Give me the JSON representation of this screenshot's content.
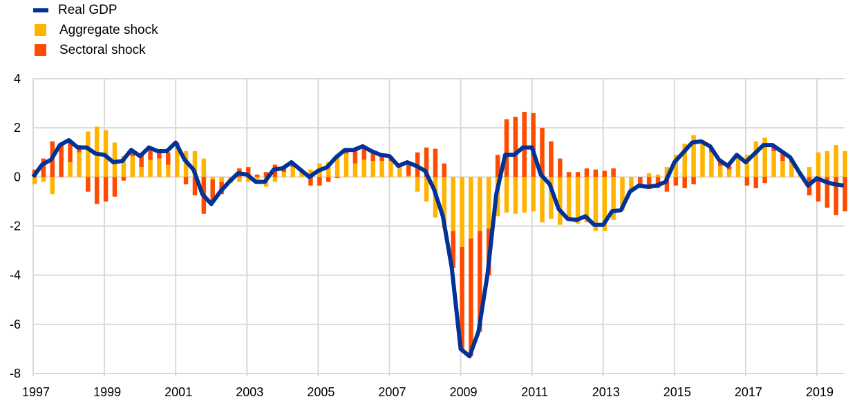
{
  "chart_data": {
    "type": "bar",
    "subtype": "stacked bar with line overlay",
    "title": "",
    "xlabel": "",
    "ylabel": "",
    "ylim": [
      -8,
      4
    ],
    "yticks": [
      "4",
      "2",
      "0",
      "-2",
      "-4",
      "-6",
      "-8"
    ],
    "ytick_values": [
      4,
      2,
      0,
      -2,
      -4,
      -6,
      -8
    ],
    "xticks": [
      "1997",
      "1999",
      "2001",
      "2003",
      "2005",
      "2007",
      "2009",
      "2011",
      "2013",
      "2015",
      "2017",
      "2019"
    ],
    "x_start": "1997Q1",
    "x_end": "2019Q4",
    "frequency": "quarterly",
    "grid": true,
    "legend_position": "top-left",
    "legend": [
      "Real GDP",
      "Aggregate shock",
      "Sectoral shock"
    ],
    "colors": {
      "gdp": "#003299",
      "aggregate": "#FFB400",
      "sectoral": "#FF4B00",
      "grid": "#D9D9D9"
    },
    "series": [
      {
        "name": "Real GDP",
        "kind": "line",
        "values": [
          0.0,
          0.5,
          0.7,
          1.3,
          1.5,
          1.2,
          1.2,
          0.95,
          0.9,
          0.6,
          0.65,
          1.1,
          0.85,
          1.2,
          1.05,
          1.05,
          1.4,
          0.7,
          0.3,
          -0.7,
          -1.1,
          -0.6,
          -0.2,
          0.15,
          0.1,
          -0.2,
          -0.2,
          0.3,
          0.35,
          0.6,
          0.3,
          0.0,
          0.25,
          0.4,
          0.8,
          1.1,
          1.1,
          1.25,
          1.05,
          0.9,
          0.85,
          0.45,
          0.6,
          0.45,
          0.25,
          -0.5,
          -1.6,
          -3.7,
          -7.0,
          -7.3,
          -6.3,
          -4.0,
          -0.7,
          0.9,
          0.9,
          1.2,
          1.2,
          0.1,
          -0.3,
          -1.3,
          -1.7,
          -1.75,
          -1.6,
          -1.95,
          -1.95,
          -1.4,
          -1.35,
          -0.6,
          -0.35,
          -0.4,
          -0.35,
          -0.2,
          0.6,
          1.0,
          1.4,
          1.45,
          1.25,
          0.7,
          0.45,
          0.9,
          0.6,
          0.95,
          1.3,
          1.3,
          1.05,
          0.8,
          0.2,
          -0.35,
          -0.05,
          -0.2,
          -0.3,
          -0.35
        ]
      },
      {
        "name": "Aggregate shock",
        "kind": "bar",
        "values": [
          -0.3,
          -0.2,
          -0.7,
          0.0,
          0.6,
          1.0,
          1.85,
          2.05,
          1.9,
          1.4,
          0.85,
          0.85,
          0.4,
          0.7,
          0.75,
          0.5,
          1.3,
          1.05,
          1.05,
          0.75,
          -0.1,
          -0.2,
          -0.25,
          -0.2,
          -0.2,
          -0.1,
          -0.4,
          -0.2,
          0.2,
          0.4,
          0.3,
          0.3,
          0.55,
          0.6,
          0.8,
          0.95,
          0.55,
          0.7,
          0.65,
          0.65,
          0.65,
          0.4,
          0.05,
          -0.6,
          -1.0,
          -1.65,
          -2.1,
          -2.2,
          -2.85,
          -2.5,
          -2.2,
          -2.1,
          -1.6,
          -1.45,
          -1.5,
          -1.45,
          -1.4,
          -1.85,
          -1.7,
          -1.95,
          -1.8,
          -1.9,
          -1.85,
          -2.2,
          -2.2,
          -1.75,
          -1.35,
          -0.55,
          0.0,
          0.15,
          0.1,
          0.4,
          0.9,
          1.35,
          1.7,
          1.5,
          1.0,
          0.45,
          0.3,
          0.9,
          0.9,
          1.45,
          1.6,
          1.05,
          0.65,
          0.6,
          0.1,
          0.4,
          1.0,
          1.05,
          1.3,
          1.05
        ]
      },
      {
        "name": "Sectoral shock",
        "kind": "bar",
        "values": [
          0.3,
          0.75,
          1.45,
          1.3,
          0.8,
          0.3,
          -0.6,
          -1.1,
          -1.0,
          -0.8,
          -0.15,
          0.15,
          0.5,
          0.5,
          0.25,
          0.5,
          0.1,
          -0.3,
          -0.75,
          -1.5,
          -0.9,
          -0.5,
          0.0,
          0.35,
          0.4,
          0.1,
          0.2,
          0.5,
          0.25,
          0.1,
          0.0,
          -0.35,
          -0.35,
          -0.2,
          -0.05,
          0.15,
          0.55,
          0.55,
          0.35,
          0.25,
          0.2,
          0.1,
          0.55,
          1.0,
          1.2,
          1.15,
          0.55,
          -1.5,
          -4.15,
          -4.8,
          -4.1,
          -1.9,
          0.9,
          2.35,
          2.45,
          2.65,
          2.6,
          2.0,
          1.45,
          0.75,
          0.2,
          0.2,
          0.35,
          0.3,
          0.25,
          0.35,
          0.0,
          0.0,
          -0.35,
          -0.5,
          -0.45,
          -0.6,
          -0.35,
          -0.45,
          -0.3,
          0.0,
          0.2,
          0.25,
          0.15,
          0.0,
          -0.35,
          -0.45,
          -0.25,
          0.2,
          0.3,
          0.15,
          0.0,
          -0.75,
          -1.0,
          -1.25,
          -1.55,
          -1.4
        ]
      }
    ]
  }
}
